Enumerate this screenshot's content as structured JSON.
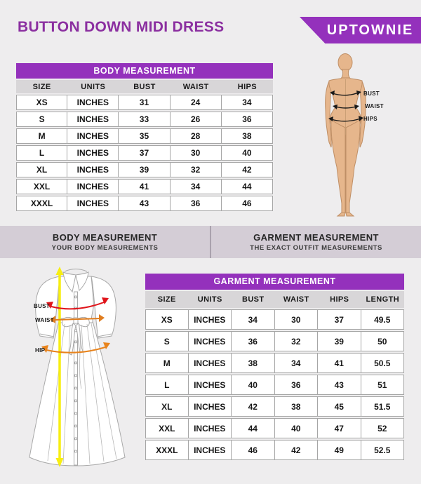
{
  "header": {
    "title": "BUTTON DOWN MIDI DRESS",
    "brand": "UPTOWNIE"
  },
  "body_measurement_table": {
    "title": "BODY MEASUREMENT",
    "columns": [
      "SIZE",
      "UNITS",
      "BUST",
      "WAIST",
      "HIPS"
    ],
    "rows": [
      [
        "XS",
        "INCHES",
        "31",
        "24",
        "34"
      ],
      [
        "S",
        "INCHES",
        "33",
        "26",
        "36"
      ],
      [
        "M",
        "INCHES",
        "35",
        "28",
        "38"
      ],
      [
        "L",
        "INCHES",
        "37",
        "30",
        "40"
      ],
      [
        "XL",
        "INCHES",
        "39",
        "32",
        "42"
      ],
      [
        "XXL",
        "INCHES",
        "41",
        "34",
        "44"
      ],
      [
        "XXXL",
        "INCHES",
        "43",
        "36",
        "46"
      ]
    ]
  },
  "garment_measurement_table": {
    "title": "GARMENT MEASUREMENT",
    "columns": [
      "SIZE",
      "UNITS",
      "BUST",
      "WAIST",
      "HIPS",
      "LENGTH"
    ],
    "rows": [
      [
        "XS",
        "INCHES",
        "34",
        "30",
        "37",
        "49.5"
      ],
      [
        "S",
        "INCHES",
        "36",
        "32",
        "39",
        "50"
      ],
      [
        "M",
        "INCHES",
        "38",
        "34",
        "41",
        "50.5"
      ],
      [
        "L",
        "INCHES",
        "40",
        "36",
        "43",
        "51"
      ],
      [
        "XL",
        "INCHES",
        "42",
        "38",
        "45",
        "51.5"
      ],
      [
        "XXL",
        "INCHES",
        "44",
        "40",
        "47",
        "52"
      ],
      [
        "XXXL",
        "INCHES",
        "46",
        "42",
        "49",
        "52.5"
      ]
    ]
  },
  "legend_band": {
    "left": {
      "title": "BODY MEASUREMENT",
      "subtitle": "YOUR BODY MEASUREMENTS"
    },
    "right": {
      "title": "GARMENT MEASUREMENT",
      "subtitle": "THE EXACT OUTFIT MEASUREMENTS"
    }
  },
  "body_figure": {
    "labels": {
      "bust": "BUST",
      "waist": "WAIST",
      "hips": "HIPS"
    }
  },
  "dress_figure": {
    "labels": {
      "bust": "BUST",
      "waist": "WAIST",
      "hip": "HIP"
    }
  },
  "colors": {
    "accent_purple": "#9431BC",
    "title_text_purple": "#8B2FA0",
    "legend_band_bg": "#D4CDD6",
    "page_bg": "#EEEDEE",
    "column_header_bg": "#D8D6D8",
    "cell_border_gray": "#A6A6A6",
    "bust_arrow_red": "#E0141A",
    "waist_hip_arrow_orange": "#E07D1F",
    "length_arrow_yellow": "#F7EE12",
    "figure_skin": "#E6B68C"
  }
}
